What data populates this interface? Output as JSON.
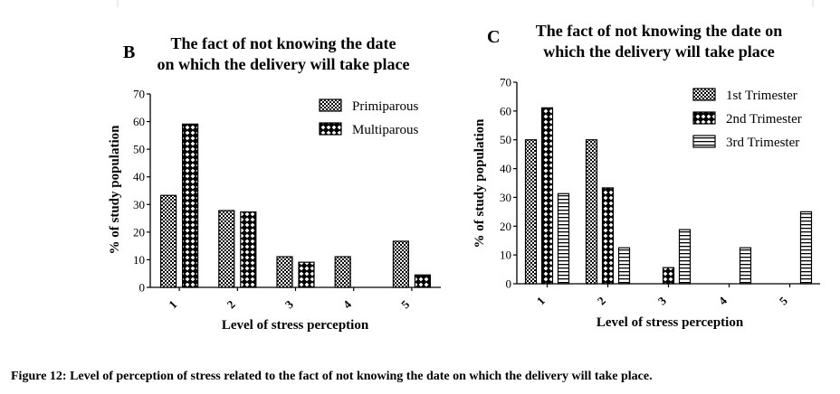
{
  "caption": "Figure 12: Level of perception of stress related to the fact of not knowing the date on which the delivery will take place.",
  "chart_data": [
    {
      "type": "bar",
      "panel_label": "B",
      "title_lines": [
        "The fact of not knowing the date",
        "on which the delivery will take place"
      ],
      "xlabel": "Level of stress perception",
      "ylabel": "% of study population",
      "categories": [
        "1",
        "2",
        "3",
        "4",
        "5"
      ],
      "ylim": [
        0,
        70
      ],
      "yticks": [
        0,
        10,
        20,
        30,
        40,
        50,
        60,
        70
      ],
      "legend_position": "top-right",
      "series": [
        {
          "name": "Primiparous",
          "pattern": "checker",
          "values": [
            33.3,
            27.8,
            11.1,
            11.1,
            16.7
          ]
        },
        {
          "name": "Multiparous",
          "pattern": "diamond",
          "values": [
            59.1,
            27.3,
            9.1,
            0,
            4.5
          ]
        }
      ]
    },
    {
      "type": "bar",
      "panel_label": "C",
      "title_lines": [
        "The fact of not knowing the date on",
        "which the delivery will take place"
      ],
      "xlabel": "Level of stress perception",
      "ylabel": "% of study population",
      "categories": [
        "1",
        "2",
        "3",
        "4",
        "5"
      ],
      "ylim": [
        0,
        70
      ],
      "yticks": [
        0,
        10,
        20,
        30,
        40,
        50,
        60,
        70
      ],
      "legend_position": "top-right",
      "series": [
        {
          "name": "1st Trimester",
          "pattern": "checker",
          "values": [
            50,
            50,
            0,
            0,
            0
          ]
        },
        {
          "name": "2nd Trimester",
          "pattern": "diamond",
          "values": [
            61.1,
            33.3,
            5.6,
            0,
            0
          ]
        },
        {
          "name": "3rd Trimester",
          "pattern": "hlines",
          "values": [
            31.3,
            12.5,
            18.8,
            12.5,
            25
          ]
        }
      ]
    }
  ]
}
